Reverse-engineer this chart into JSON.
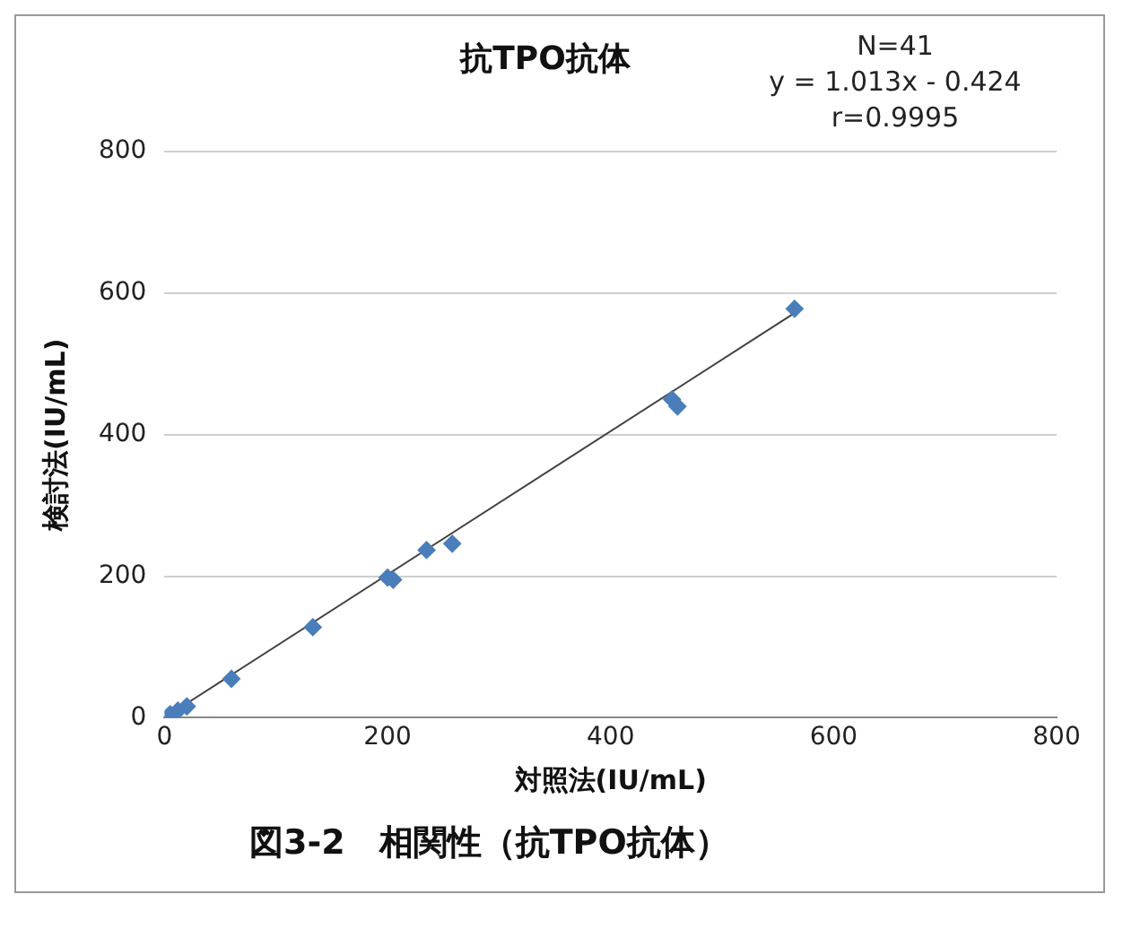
{
  "chart_data": {
    "type": "scatter",
    "title": "抗TPO抗体",
    "xlabel": "対照法(IU/mL)",
    "ylabel": "検討法(IU/mL)",
    "annotations": [
      "N=41\ny = 1.013x - 0.424\nr=0.9995",
      "図3-2　相関性（抗TPO抗体）"
    ],
    "series": [
      {
        "color": "#4a7ebb",
        "x": [
          5,
          12,
          20,
          60,
          133,
          200,
          205,
          235,
          258,
          455,
          460,
          565
        ],
        "values": [
          5,
          10,
          16,
          55,
          128,
          198,
          195,
          237,
          246,
          450,
          440,
          578
        ]
      },
      {
        "type": "line",
        "color": "#404040",
        "marker": "none",
        "x": [
          3,
          563
        ],
        "values": [
          3,
          570
        ]
      }
    ],
    "xlim": [
      0,
      800
    ],
    "xticks": [
      0,
      200,
      400,
      600,
      800
    ],
    "ylim": [
      0,
      800
    ],
    "yticks": [
      0,
      200,
      400,
      600,
      800
    ],
    "grid": "y",
    "legend": false,
    "marker": "diamond",
    "line_style": "solid"
  }
}
